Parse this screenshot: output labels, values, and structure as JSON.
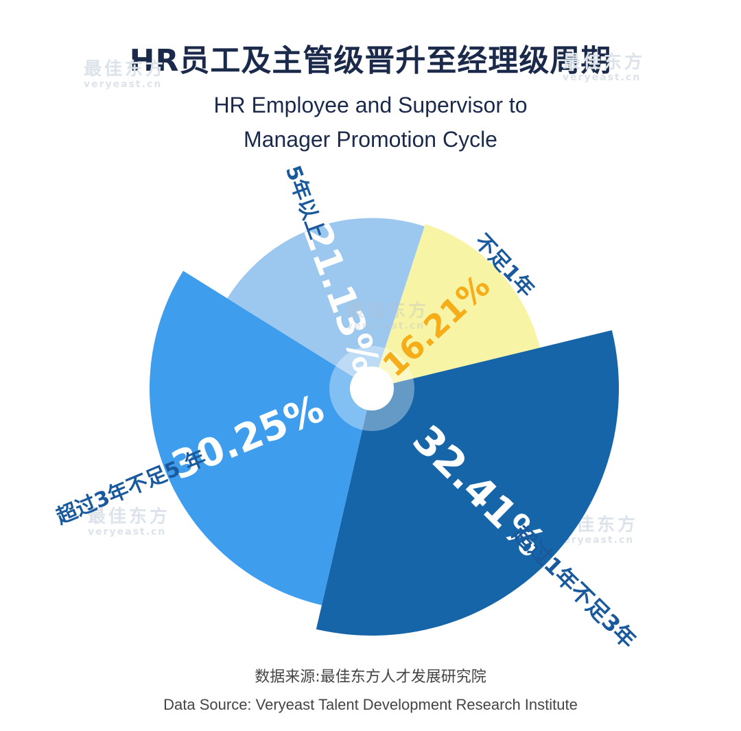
{
  "title_cn": "HR员工及主管级晋升至经理级周期",
  "title_en_line1": "HR Employee and Supervisor to",
  "title_en_line2": "Manager Promotion Cycle",
  "watermark": {
    "cn": "最佳东方",
    "en": "veryeast.cn"
  },
  "footer_cn": "数据来源:最佳东方人才发展研究院",
  "footer_en": "Data Source: Veryeast Talent Development Research Institute",
  "chart_data": {
    "type": "pie",
    "variant": "rose (radius varies by value)",
    "categories": [
      "不足1年",
      "超过1年不足3年",
      "超过3年不足5 年",
      "5年以上"
    ],
    "values": [
      16.21,
      32.41,
      30.25,
      21.13
    ],
    "value_labels": [
      "16.21%",
      "32.41%",
      "30.25%",
      "21.13%"
    ],
    "colors": [
      "#f7f5a5",
      "#1565a8",
      "#3f9ded",
      "#9cc8f0"
    ],
    "value_label_colors": [
      "#f5ad19",
      "#ffffff",
      "#ffffff",
      "#ffffff"
    ],
    "category_label_color": "#1a5a9c"
  }
}
